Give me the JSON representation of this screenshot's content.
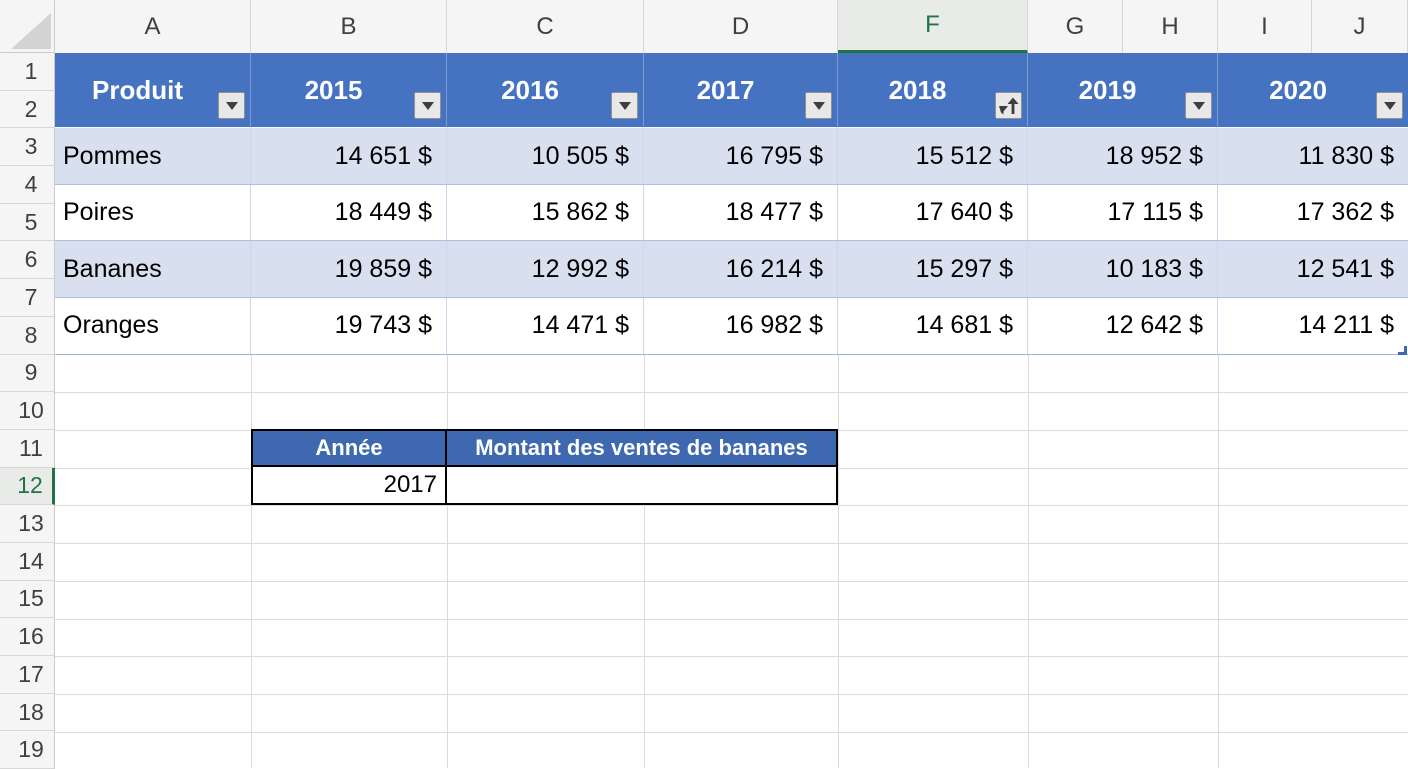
{
  "colors": {
    "accent_green": "#217346",
    "table_header_blue": "#4573C1",
    "lookup_header_blue": "#3E69B0",
    "band_row_blue": "#D8DFEF",
    "selection_border_black": "#000000"
  },
  "sheet": {
    "column_letters": [
      "A",
      "B",
      "C",
      "D",
      "F",
      "G",
      "H",
      "I",
      "J"
    ],
    "selected_column": "F",
    "row_numbers": [
      1,
      2,
      3,
      4,
      5,
      6,
      7,
      8,
      9,
      10,
      11,
      12,
      13,
      14,
      15,
      16,
      17,
      18,
      19
    ],
    "selected_row": 12
  },
  "main_table": {
    "columns": [
      "Produit",
      "2015",
      "2016",
      "2017",
      "2018",
      "2019",
      "2020"
    ],
    "filter_icons": [
      "filter-dropdown",
      "filter-dropdown",
      "filter-dropdown",
      "filter-dropdown",
      "sort-ascending-filter",
      "filter-dropdown",
      "filter-dropdown"
    ],
    "rows": [
      {
        "produit": "Pommes",
        "values": [
          "14 651 $",
          "10 505 $",
          "16 795 $",
          "15 512 $",
          "18 952 $",
          "11 830 $"
        ]
      },
      {
        "produit": "Poires",
        "values": [
          "18 449 $",
          "15 862 $",
          "18 477 $",
          "17 640 $",
          "17 115 $",
          "17 362 $"
        ]
      },
      {
        "produit": "Bananes",
        "values": [
          "19 859 $",
          "12 992 $",
          "16 214 $",
          "15 297 $",
          "10 183 $",
          "12 541 $"
        ]
      },
      {
        "produit": "Oranges",
        "values": [
          "19 743 $",
          "14 471 $",
          "16 982 $",
          "14 681 $",
          "12 642 $",
          "14 211 $"
        ]
      }
    ]
  },
  "lookup_table": {
    "headers": [
      "Année",
      "Montant des ventes de bananes"
    ],
    "row": {
      "annee": "2017",
      "montant": ""
    }
  }
}
